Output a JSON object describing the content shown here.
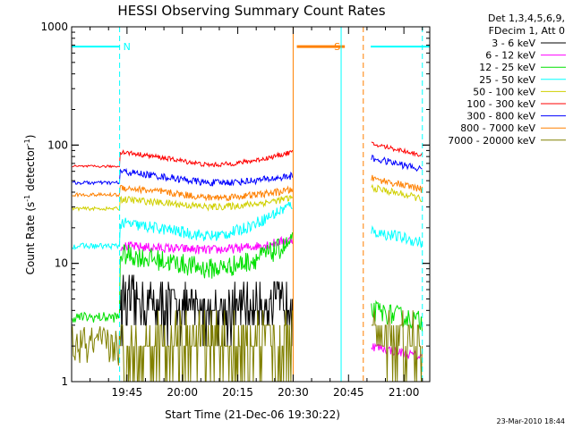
{
  "chart_data": {
    "type": "line",
    "title": "HESSI Observing Summary Count Rates",
    "xlabel": "Start Time (21-Dec-06 19:30:22)",
    "ylabel_main": "Count Rate (s",
    "ylabel_sup1": "-1",
    "ylabel_mid": " detector",
    "ylabel_sup2": "-1",
    "ylabel_end": ")",
    "y_scale": "log",
    "ylim": [
      1,
      1000
    ],
    "xlim_minutes": [
      0,
      97
    ],
    "x_ticks": [
      {
        "m": 15,
        "label": "19:45"
      },
      {
        "m": 30,
        "label": "20:00"
      },
      {
        "m": 45,
        "label": "20:15"
      },
      {
        "m": 60,
        "label": "20:30"
      },
      {
        "m": 75,
        "label": "20:45"
      },
      {
        "m": 90,
        "label": "21:00"
      }
    ],
    "y_ticks": [
      {
        "v": 1,
        "label": "1"
      },
      {
        "v": 10,
        "label": "10"
      },
      {
        "v": 100,
        "label": "100"
      },
      {
        "v": 1000,
        "label": "1000"
      }
    ],
    "legend_header": [
      "Det 1,3,4,5,6,9,",
      "FDecim 1, Att 0"
    ],
    "series": [
      {
        "name": "3 - 6 keV",
        "color": "#000000",
        "start": 5,
        "mid": 4,
        "end": 5,
        "noise": 0.18,
        "step": true,
        "post": 0
      },
      {
        "name": "6 - 12 keV",
        "color": "#ff00ff",
        "start": 14,
        "mid": 13,
        "end": 16,
        "noise": 0.04,
        "post": 1.6
      },
      {
        "name": "12 - 25 keV",
        "color": "#00e000",
        "start": 12,
        "mid": 9,
        "end": 15,
        "noise": 0.09,
        "post": 3.2
      },
      {
        "name": "25 - 50 keV",
        "color": "#00ffff",
        "start": 22,
        "mid": 17,
        "end": 32,
        "noise": 0.05,
        "post": 15
      },
      {
        "name": "50 - 100 keV",
        "color": "#d0d000",
        "start": 35,
        "mid": 30,
        "end": 36,
        "noise": 0.03,
        "post": 35
      },
      {
        "name": "100 - 300 keV",
        "color": "#ff0000",
        "start": 88,
        "mid": 68,
        "end": 88,
        "noise": 0.02,
        "post": 82
      },
      {
        "name": "300 - 800 keV",
        "color": "#0000ff",
        "start": 60,
        "mid": 48,
        "end": 55,
        "noise": 0.03,
        "post": 62
      },
      {
        "name": "800 - 7000 keV",
        "color": "#ff8000",
        "start": 44,
        "mid": 36,
        "end": 42,
        "noise": 0.03,
        "post": 42
      },
      {
        "name": "7000 - 20000 keV",
        "color": "#808000",
        "start": 2,
        "mid": 2,
        "end": 2,
        "noise": 0.2,
        "step": true,
        "post": 2
      }
    ],
    "pre_levels": {
      "3 - 6 keV": 0,
      "12 - 25 keV": 3.5,
      "7000 - 20000 keV": 2,
      "100 - 300 keV": 66,
      "300 - 800 keV": 48,
      "800 - 7000 keV": 38,
      "50 - 100 keV": 29,
      "25 - 50 keV": 14
    },
    "data_gap_minutes": [
      64,
      78
    ],
    "flags": [
      {
        "label": "N",
        "color": "#00ffff",
        "from": 0,
        "to": 13,
        "value": 680
      },
      {
        "label": "S",
        "color": "#ff8000",
        "from": 61,
        "to": 74,
        "value": 680
      },
      {
        "label": "",
        "color": "#00ffff",
        "from": 81,
        "to": 97,
        "value": 680
      }
    ],
    "night_boundaries_min": [
      0,
      13,
      73,
      95
    ],
    "orbit_markers_min": [
      21,
      79
    ],
    "saa_boundaries_min": [
      60,
      79
    ],
    "timestamp": "23-Mar-2010 18:44"
  }
}
